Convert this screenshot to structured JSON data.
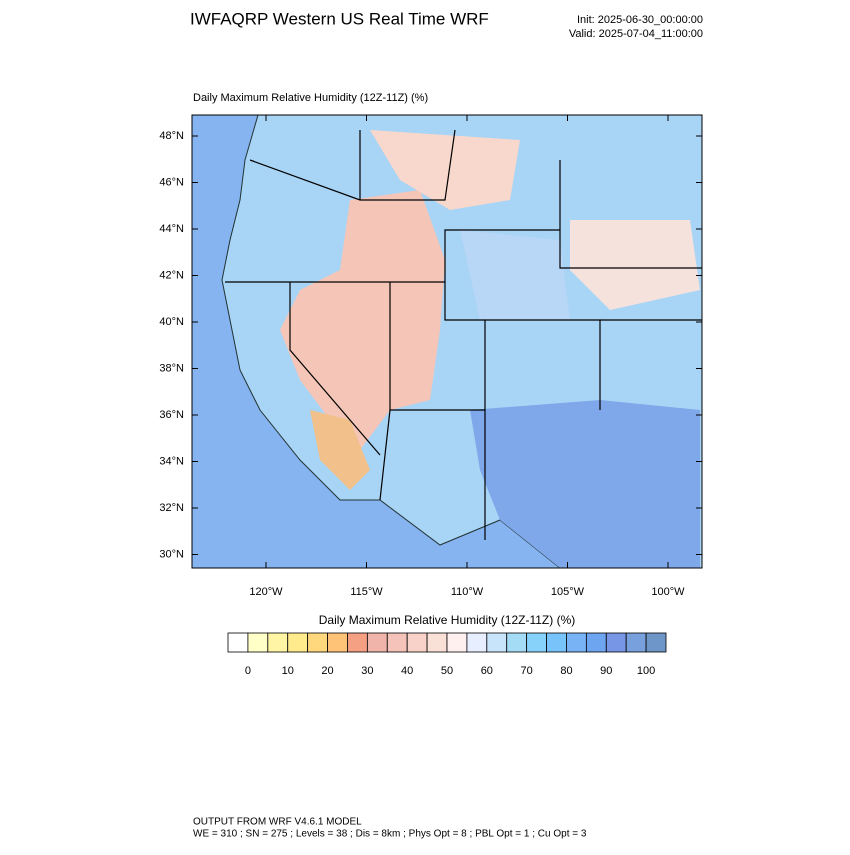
{
  "header": {
    "title": "IWFAQRP Western US Real Time WRF",
    "init": "Init: 2025-06-30_00:00:00",
    "valid": "Valid: 2025-07-04_11:00:00"
  },
  "map": {
    "title": "Daily Maximum Relative Humidity (12Z-11Z)   (%)",
    "lat_labels": [
      "48°N",
      "46°N",
      "44°N",
      "42°N",
      "40°N",
      "38°N",
      "36°N",
      "34°N",
      "32°N",
      "30°N"
    ],
    "lon_labels": [
      "120°W",
      "115°W",
      "110°W",
      "105°W",
      "100°W"
    ]
  },
  "colorbar": {
    "title": "Daily Maximum Relative Humidity (12Z-11Z)  (%)",
    "colors": [
      "#ffffff",
      "#ffffc8",
      "#fff5a5",
      "#ffeb8c",
      "#ffd77d",
      "#ffc378",
      "#f5a082",
      "#f0b4aa",
      "#f5c3b9",
      "#f8d2c8",
      "#fae1d7",
      "#fff0f0",
      "#e6eeff",
      "#c8e4fa",
      "#a5dcf5",
      "#87d2fa",
      "#78c3fa",
      "#78b4f5",
      "#6ea5f0",
      "#7896e6",
      "#78a0dc",
      "#6e96c8"
    ],
    "ticks": [
      0,
      10,
      20,
      30,
      40,
      50,
      60,
      70,
      80,
      90,
      100
    ]
  },
  "footer": {
    "line1": "OUTPUT FROM WRF V4.6.1 MODEL",
    "line2": "WE = 310 ; SN = 275 ; Levels = 38 ; Dis = 8km ; Phys Opt = 8 ; PBL Opt = 1 ; Cu Opt = 3"
  }
}
